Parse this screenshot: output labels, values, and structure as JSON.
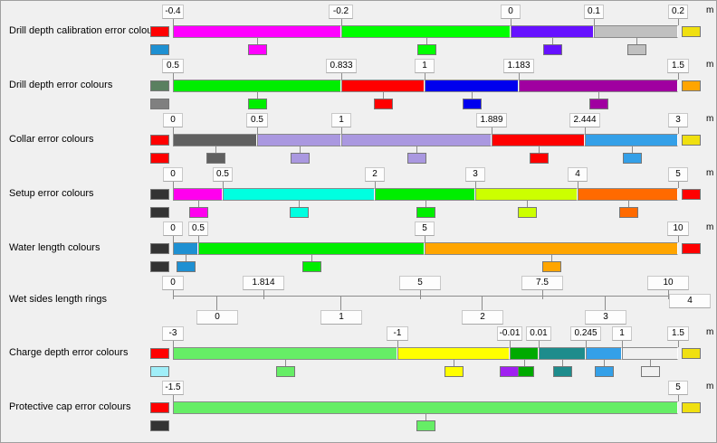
{
  "unit": "m",
  "rows": [
    {
      "label": "Drill depth calibration error colours",
      "below": "#1e90d2",
      "above": "#f0e010",
      "breaks": [
        {
          "v": "-0.4",
          "lw": 24
        },
        {
          "v": "-0.2",
          "lw": 27
        },
        {
          "v": "0",
          "lw": 22
        },
        {
          "v": "0.1",
          "lw": 22
        },
        {
          "v": "0.2",
          "lw": 22
        }
      ],
      "colors": [
        "#ff00ff",
        "#00ff00",
        "#6611ff",
        "#c0c0c0"
      ],
      "beforeColor": "#ff0000",
      "afterColor": "#f0e010"
    },
    {
      "label": "Drill depth error colours",
      "below": "#808080",
      "above": "#ffa500",
      "breaks": [
        {
          "v": "0.5",
          "lw": 24
        },
        {
          "v": "0.833",
          "lw": 34
        },
        {
          "v": "1",
          "lw": 22
        },
        {
          "v": "1.183",
          "lw": 34
        },
        {
          "v": "1.5",
          "lw": 24
        }
      ],
      "colors": [
        "#00ee00",
        "#ff0000",
        "#0000ee",
        "#a000a0"
      ],
      "beforeColor": "#5a8060",
      "afterColor": "#ffa500"
    },
    {
      "label": "Collar error colours",
      "below": "#ff0000",
      "above": "#f0e010",
      "breaks": [
        {
          "v": "0",
          "lw": 22
        },
        {
          "v": "0.5",
          "lw": 24
        },
        {
          "v": "1",
          "lw": 22
        },
        {
          "v": "1.889",
          "lw": 34
        },
        {
          "v": "2.444",
          "lw": 34
        },
        {
          "v": "3",
          "lw": 22
        }
      ],
      "colors": [
        "#606060",
        "#aa98e0",
        "#aa98e0",
        "#ff0000",
        "#34a0e8"
      ],
      "beforeColor": null,
      "afterColor": "#f0e010"
    },
    {
      "label": "Setup error colours",
      "below": "#333333",
      "above": "#ff0000",
      "breaks": [
        {
          "v": "0",
          "lw": 22
        },
        {
          "v": "0.5",
          "lw": 22
        },
        {
          "v": "2",
          "lw": 22
        },
        {
          "v": "3",
          "lw": 22
        },
        {
          "v": "4",
          "lw": 22
        },
        {
          "v": "5",
          "lw": 22
        }
      ],
      "colors": [
        "#ff00ee",
        "#00ffe0",
        "#00ee00",
        "#ccff00",
        "#ff6a00"
      ],
      "beforeColor": null,
      "afterColor": "#ff0000"
    },
    {
      "label": "Water length colours",
      "below": "#333333",
      "above": "#ff0000",
      "breaks": [
        {
          "v": "0",
          "lw": 22
        },
        {
          "v": "0.5",
          "lw": 22
        },
        {
          "v": "5",
          "lw": 22
        },
        {
          "v": "10",
          "lw": 24
        }
      ],
      "colors": [
        "#1e90d2",
        "#00ee00",
        "#ffa500"
      ],
      "beforeColor": null,
      "afterColor": "#ff0000"
    }
  ],
  "rings": {
    "label": "Wet sides length rings",
    "breaks": [
      {
        "v": "0",
        "lw": 24
      },
      {
        "v": "1.814",
        "lw": 46
      },
      {
        "v": "5",
        "lw": 46
      },
      {
        "v": "7.5",
        "lw": 46
      },
      {
        "v": "10",
        "lw": 46
      }
    ],
    "rings": [
      "0",
      "1",
      "2",
      "3"
    ],
    "extra": "4"
  },
  "rows2": [
    {
      "label": "Charge depth error colours",
      "below": "#a0eef8",
      "above": "#f0e010",
      "breaks": [
        {
          "v": "-3",
          "lw": 24
        },
        {
          "v": "-1",
          "lw": 24
        },
        {
          "v": "-0.01",
          "lw": 28
        },
        {
          "v": "0.01",
          "lw": 28
        },
        {
          "v": "0.245",
          "lw": 34
        },
        {
          "v": "1",
          "lw": 22
        },
        {
          "v": "1.5",
          "lw": 24
        }
      ],
      "colors": [
        "#66ee66",
        "#ffff00",
        "#00aa00",
        "#1e8c8c",
        "#34a0e8"
      ],
      "vivid": "#a020f0",
      "beforeColor": "#ff0000",
      "afterColor": "#f0e010"
    },
    {
      "label": "Protective cap error colours",
      "below": "#333333",
      "above": "#66ee66",
      "breaks": [
        {
          "v": "-1.5",
          "lw": 24
        },
        {
          "v": "5",
          "lw": 22
        }
      ],
      "colors": [
        "#66ee66"
      ],
      "beforeColor": "#ff0000",
      "afterColor": "#f0e010"
    }
  ]
}
